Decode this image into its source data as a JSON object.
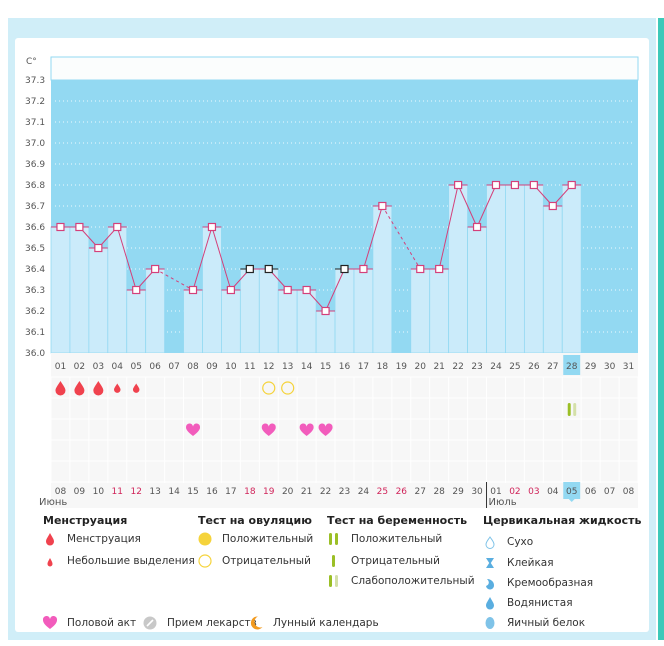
{
  "chart_data": {
    "type": "bar",
    "title": "",
    "ylabel": "C°",
    "ylim": [
      36.0,
      37.3
    ],
    "yticks": [
      "37.3",
      "37.2",
      "37.1",
      "37.0",
      "36.9",
      "36.8",
      "36.7",
      "36.6",
      "36.5",
      "36.4",
      "36.3",
      "36.2",
      "36.1",
      "36.0"
    ],
    "cycle_days": [
      "01",
      "02",
      "03",
      "04",
      "05",
      "06",
      "07",
      "08",
      "09",
      "10",
      "11",
      "12",
      "13",
      "14",
      "15",
      "16",
      "17",
      "18",
      "19",
      "20",
      "21",
      "22",
      "23",
      "24",
      "25",
      "26",
      "27",
      "28",
      "29",
      "30",
      "31"
    ],
    "temperatures": [
      36.6,
      36.6,
      36.5,
      36.6,
      36.3,
      36.4,
      null,
      36.3,
      36.6,
      36.3,
      36.4,
      36.4,
      36.3,
      36.3,
      36.2,
      36.4,
      36.4,
      36.7,
      null,
      36.4,
      36.4,
      36.8,
      36.6,
      36.8,
      36.8,
      36.8,
      36.7,
      36.8,
      null,
      null,
      null
    ],
    "excluded_points": [
      11,
      12,
      16
    ],
    "current_cycle_day": "28",
    "calendar_dates": [
      "08",
      "09",
      "10",
      "11",
      "12",
      "13",
      "14",
      "15",
      "16",
      "17",
      "18",
      "19",
      "20",
      "21",
      "22",
      "23",
      "24",
      "25",
      "26",
      "27",
      "28",
      "29",
      "30",
      "01",
      "02",
      "03",
      "04",
      "05",
      "06",
      "07",
      "08"
    ],
    "weekend_date_indices": [
      3,
      4,
      10,
      11,
      17,
      18,
      24,
      25
    ],
    "today_date_index": 27,
    "month_labels": [
      {
        "label": "Июнь",
        "start_index": 0
      },
      {
        "label": "Июль",
        "start_index": 23
      }
    ],
    "markers": {
      "menstruation": [
        1,
        2,
        3
      ],
      "spotting": [
        4,
        5
      ],
      "ovulation_test_negative": [
        12,
        13
      ],
      "pregnancy_test_weak_positive": [
        28
      ],
      "intercourse": [
        8,
        12,
        14,
        15
      ]
    },
    "colors": {
      "bar_fill": "#cbebfa",
      "plot_background": "#93d9f2",
      "line": "#d4407a",
      "menstruation": "#f0424e",
      "intercourse": "#f25cbc",
      "ovulation_test": "#f5d33b",
      "pregnancy_test": "#9bbf26",
      "pregnancy_test_weak": "#d4e0a8"
    }
  },
  "legend": {
    "menstruation": {
      "title": "Менструация",
      "items": [
        "Менструация",
        "Небольшие выделения"
      ]
    },
    "ovulation_test": {
      "title": "Тест на овуляцию",
      "items": [
        "Положительный",
        "Отрицательный"
      ]
    },
    "pregnancy_test": {
      "title": "Тест на беременность",
      "items": [
        "Положительный",
        "Отрицательный",
        "Слабоположительный"
      ]
    },
    "cervical_fluid": {
      "title": "Цервикальная жидкость",
      "items": [
        "Сухо",
        "Клейкая",
        "Кремообразная",
        "Водянистая",
        "Яичный белок"
      ]
    },
    "bottom": {
      "intercourse": "Половой акт",
      "medication": "Прием лекарств",
      "lunar": "Лунный календарь"
    }
  }
}
